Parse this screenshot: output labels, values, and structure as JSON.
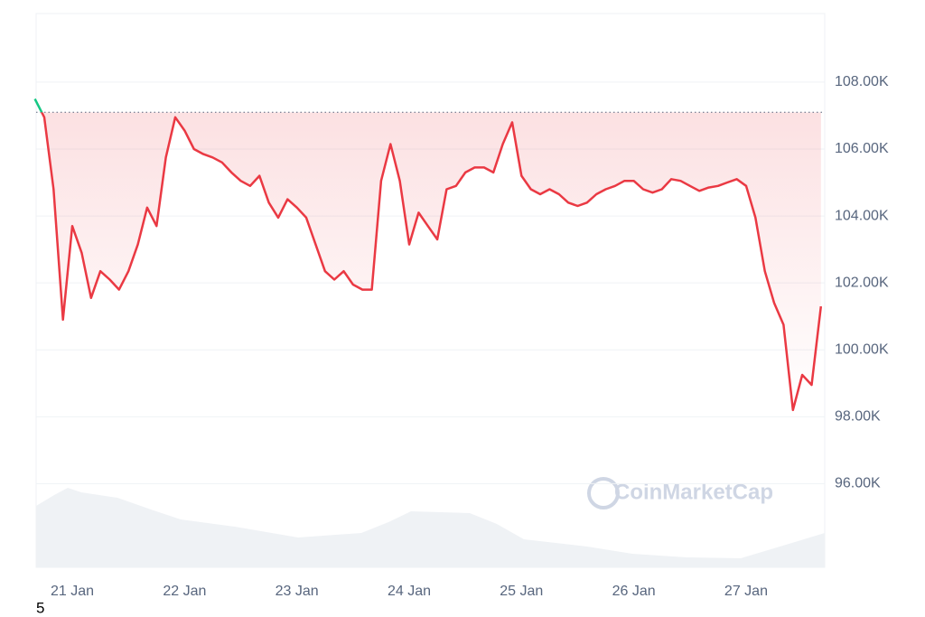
{
  "chart_data": {
    "type": "line",
    "categories": [
      null,
      null,
      null,
      null,
      "21 Jan",
      null,
      null,
      null,
      null,
      null,
      null,
      null,
      null,
      null,
      null,
      null,
      "22 Jan",
      null,
      null,
      null,
      null,
      null,
      null,
      null,
      null,
      null,
      null,
      null,
      "23 Jan",
      null,
      null,
      null,
      null,
      null,
      null,
      null,
      null,
      null,
      null,
      null,
      "24 Jan",
      null,
      null,
      null,
      null,
      null,
      null,
      null,
      null,
      null,
      null,
      null,
      "25 Jan",
      null,
      null,
      null,
      null,
      null,
      null,
      null,
      null,
      null,
      null,
      null,
      "26 Jan",
      null,
      null,
      null,
      null,
      null,
      null,
      null,
      null,
      null,
      null,
      null,
      "27 Jan",
      null,
      null,
      null,
      null,
      null,
      null,
      null,
      null
    ],
    "values": [
      107500,
      106950,
      104800,
      100900,
      103700,
      102900,
      101550,
      102350,
      102100,
      101800,
      102350,
      103150,
      104250,
      103700,
      105750,
      106950,
      106550,
      106000,
      105850,
      105750,
      105600,
      105300,
      105050,
      104900,
      105200,
      104400,
      103950,
      104500,
      104250,
      103950,
      103150,
      102350,
      102100,
      102350,
      101950,
      101800,
      101800,
      105050,
      106150,
      105050,
      103150,
      104100,
      103700,
      103300,
      104800,
      104900,
      105300,
      105450,
      105450,
      105300,
      106150,
      106800,
      105200,
      104800,
      104650,
      104800,
      104650,
      104400,
      104300,
      104400,
      104650,
      104800,
      104900,
      105050,
      105050,
      104800,
      104700,
      104800,
      105100,
      105050,
      104900,
      104750,
      104850,
      104900,
      105000,
      105100,
      104900,
      103950,
      102350,
      101400,
      100750,
      98200,
      99250,
      98950,
      101300
    ],
    "color": "#ea3943",
    "up_color": "#16c784",
    "reference_value": 107100,
    "ylim": [
      93500,
      110050
    ],
    "yticks": [
      {
        "value": 96000,
        "label": "96.00K"
      },
      {
        "value": 98000,
        "label": "98.00K"
      },
      {
        "value": 100000,
        "label": "100.00K"
      },
      {
        "value": 102000,
        "label": "102.00K"
      },
      {
        "value": 104000,
        "label": "104.00K"
      },
      {
        "value": 106000,
        "label": "106.00K"
      },
      {
        "value": 108000,
        "label": "108.00K"
      }
    ],
    "grid": true,
    "watermark": "CoinMarketCap",
    "footnote": "5"
  }
}
